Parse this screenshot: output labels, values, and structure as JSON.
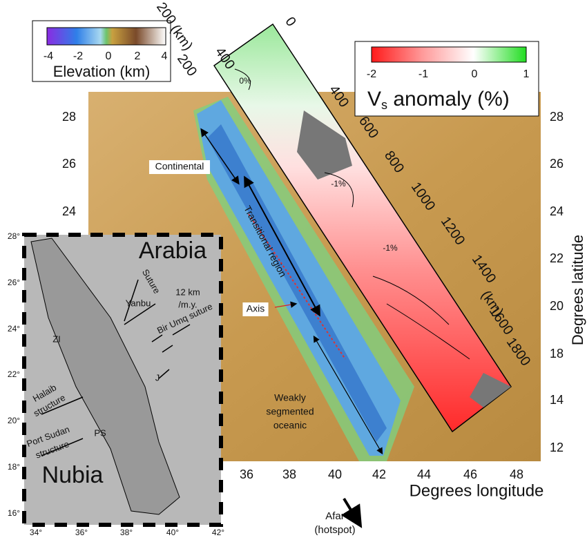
{
  "map": {
    "latitude_labels_left": [
      "28",
      "26",
      "24"
    ],
    "latitude_labels_right": [
      "28",
      "26",
      "24",
      "22",
      "20",
      "18",
      "14",
      "12"
    ],
    "longitude_labels": [
      "36",
      "38",
      "40",
      "42",
      "44",
      "46",
      "48"
    ],
    "x_axis_title": "Degrees longitude",
    "y_axis_title": "Degrees latitude",
    "annotations": {
      "continental": "Continental",
      "transitional": "Transitional region",
      "axis": "Axis",
      "oceanic": [
        "Weakly",
        "segmented",
        "oceanic"
      ],
      "afar": [
        "Afar",
        "(hotspot)"
      ]
    }
  },
  "elevation_colorbar": {
    "ticks": [
      "-4",
      "-2",
      "0",
      "2",
      "4"
    ],
    "title": "Elevation (km)"
  },
  "vs_colorbar": {
    "ticks": [
      "-2",
      "-1",
      "0",
      "1"
    ],
    "title_symbol": "V",
    "title_subscript": "s",
    "title_rest": "anomaly (%)"
  },
  "cross_section": {
    "depth_labels": [
      "400",
      "(km)",
      "200",
      "0"
    ],
    "distance_labels": [
      "200",
      "400",
      "600",
      "800",
      "1000",
      "1200",
      "1400",
      "1600",
      "1800"
    ],
    "distance_unit": "(km)",
    "contour_labels": [
      "0%",
      "-1%",
      "-1%"
    ]
  },
  "inset": {
    "region_labels": [
      "Arabia",
      "Nubia"
    ],
    "features": [
      "Yanbu",
      "Suture",
      "12 km",
      "/m.y.",
      "Bir Umq suture",
      "ZI",
      "Halaib",
      "structure",
      "J",
      "Port Sudan",
      "structure",
      "PS"
    ],
    "latitude_labels": [
      "28°",
      "26°",
      "24°",
      "22°",
      "20°",
      "18°",
      "16°"
    ],
    "longitude_labels": [
      "34°",
      "36°",
      "38°",
      "40°",
      "42°"
    ]
  }
}
